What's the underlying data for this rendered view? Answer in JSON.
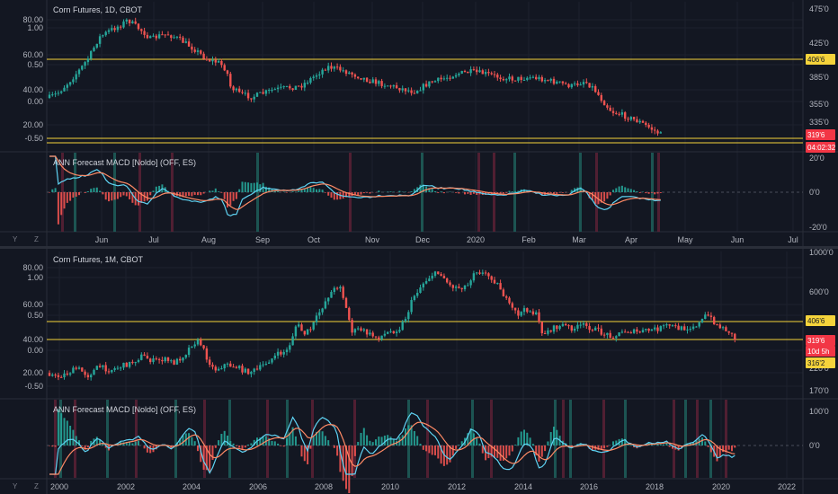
{
  "colors": {
    "background": "#131722",
    "grid": "#1e222d",
    "separator": "#2a2e39",
    "text": "#b2b5be",
    "up": "#26a69a",
    "down": "#ef5350",
    "level_line": "#f5d33b",
    "macd": "#5fd3f3",
    "signal": "#ff8a65",
    "band_green": "#1f5f5a",
    "band_red": "#5c2135",
    "price_tag_red": "#f23645",
    "price_tag_yellow": "#f5d33b"
  },
  "panes": [
    {
      "id": "daily",
      "title": "Corn Futures, 1D, CBOT",
      "left_axis_labels": [
        "80.00",
        "1.00",
        "60.00",
        "0.50",
        "40.00",
        "0.00",
        "20.00",
        "-0.50"
      ],
      "right_axis_labels": [
        "475'0",
        "425'0",
        "385'0",
        "355'0",
        "335'0"
      ],
      "price_tags": [
        "406'6",
        "319'6",
        "04:02:32"
      ],
      "macd_title": "ANN Forecast MACD [Noldo] (OFF, ES)",
      "macd_axis_labels": [
        "20'0",
        "0'0",
        "-20'0"
      ],
      "x_axis_labels": [
        "Jun",
        "Jul",
        "Aug",
        "Sep",
        "Oct",
        "Nov",
        "Dec",
        "2020",
        "Feb",
        "Mar",
        "Apr",
        "May",
        "Jun",
        "Jul"
      ]
    },
    {
      "id": "monthly",
      "title": "Corn Futures, 1M, CBOT",
      "left_axis_labels": [
        "80.00",
        "1.00",
        "60.00",
        "0.50",
        "40.00",
        "0.00",
        "20.00",
        "-0.50"
      ],
      "right_axis_labels": [
        "1000'0",
        "600'0",
        "220'0",
        "170'0"
      ],
      "price_tags": [
        "406'6",
        "319'6",
        "10d 5h",
        "316'2"
      ],
      "macd_title": "ANN Forecast MACD [Noldo] (OFF, ES)",
      "macd_axis_labels": [
        "100'0",
        "0'0"
      ],
      "x_axis_labels": [
        "2000",
        "2002",
        "2004",
        "2006",
        "2008",
        "2010",
        "2012",
        "2014",
        "2016",
        "2018",
        "2020",
        "2022"
      ]
    }
  ],
  "controls": {
    "log_toggle": "Y",
    "zoom_toggle": "Z"
  }
}
